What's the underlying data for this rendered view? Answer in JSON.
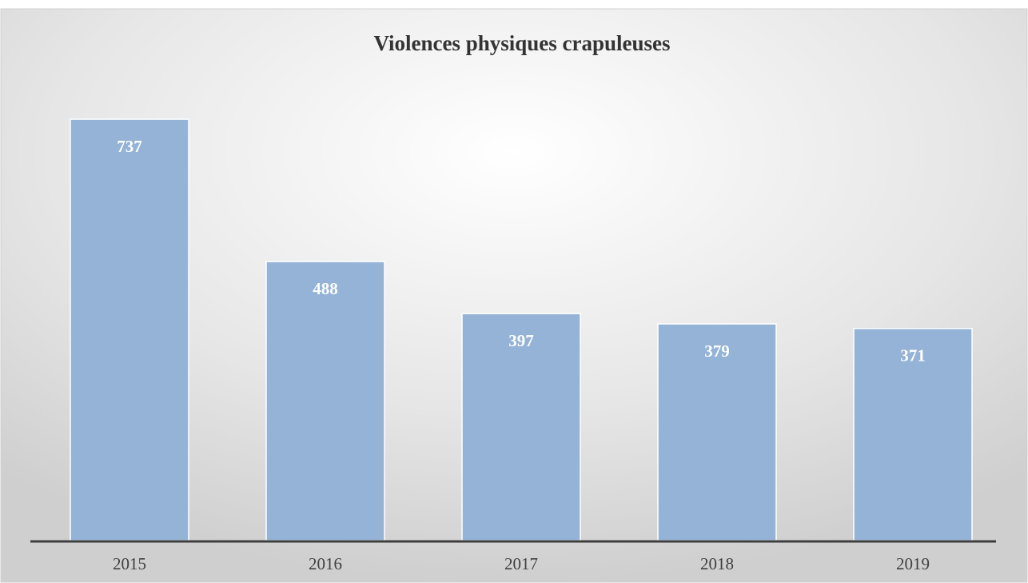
{
  "chart_data": {
    "type": "bar",
    "title": "Violences physiques crapuleuses",
    "categories": [
      "2015",
      "2016",
      "2017",
      "2018",
      "2019"
    ],
    "values": [
      737,
      488,
      397,
      379,
      371
    ],
    "color": "#95b3d7"
  }
}
